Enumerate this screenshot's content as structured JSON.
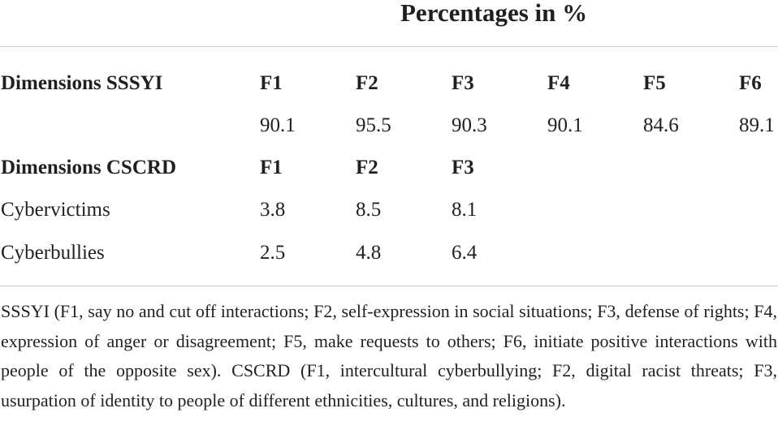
{
  "header": {
    "title": "Percentages in %"
  },
  "table": {
    "rows": [
      {
        "cells": [
          "Dimensions SSSYI",
          "F1",
          "F2",
          "F3",
          "F4",
          "F5",
          "F6"
        ]
      },
      {
        "cells": [
          "",
          "90.1",
          "95.5",
          "90.3",
          "90.1",
          "84.6",
          "89.1"
        ]
      },
      {
        "cells": [
          "Dimensions CSCRD",
          "F1",
          "F2",
          "F3",
          "",
          "",
          ""
        ]
      },
      {
        "cells": [
          "Cybervictims",
          "3.8",
          "8.5",
          "8.1",
          "",
          "",
          ""
        ]
      },
      {
        "cells": [
          "Cyberbullies",
          "2.5",
          "4.8",
          "6.4",
          "",
          "",
          ""
        ]
      }
    ]
  },
  "footnote": {
    "text": "SSSYI (F1, say no and cut off interactions; F2, self-expression in social situations; F3, defense of rights; F4, expression of anger or disagreement; F5, make requests to others; F6, initiate positive interactions with people of the opposite sex). CSCRD (F1, intercultural cyberbullying; F2, digital racist threats; F3, usurpation of identity to people of different ethnicities, cultures, and religions)."
  }
}
